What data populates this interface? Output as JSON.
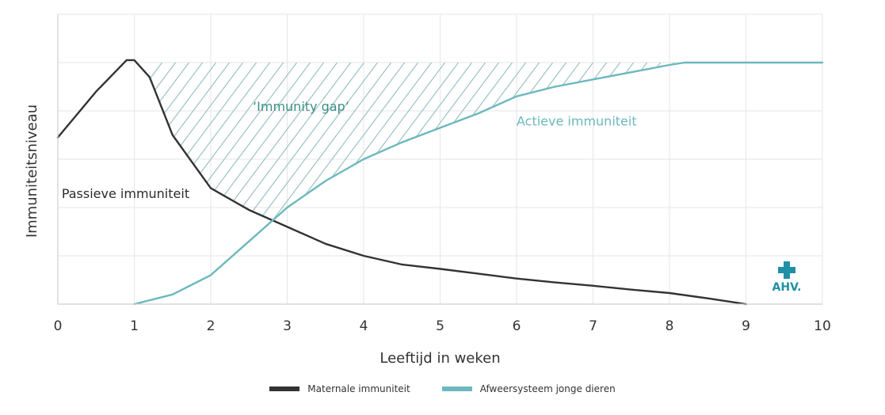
{
  "chart_data": {
    "type": "line",
    "xlabel": "Leeftijd in weken",
    "ylabel": "Immuniteitsniveau",
    "xlim": [
      0,
      10
    ],
    "ylim": [
      0,
      6
    ],
    "x_ticks": [
      "0",
      "1",
      "2",
      "3",
      "4",
      "5",
      "6",
      "7",
      "8",
      "9",
      "10"
    ],
    "grid": true,
    "legend_position": "bottom-center",
    "series": [
      {
        "name": "Maternale immuniteit",
        "color": "#333333",
        "x": [
          0,
          0.5,
          0.9,
          1.0,
          1.2,
          1.5,
          2.0,
          2.5,
          3.0,
          3.5,
          4.0,
          4.5,
          5.0,
          5.5,
          6.0,
          6.5,
          7.0,
          7.5,
          8.0,
          8.5,
          9.0
        ],
        "y": [
          3.45,
          4.4,
          5.05,
          5.05,
          4.7,
          3.5,
          2.4,
          1.95,
          1.6,
          1.25,
          1.0,
          0.82,
          0.73,
          0.63,
          0.53,
          0.45,
          0.38,
          0.3,
          0.23,
          0.12,
          0.0
        ]
      },
      {
        "name": "Afweersysteem jonge dieren",
        "color": "#6cb8bd",
        "x": [
          1.0,
          1.5,
          2.0,
          2.5,
          3.0,
          3.5,
          4.0,
          4.5,
          5.0,
          5.5,
          6.0,
          6.5,
          7.0,
          7.5,
          8.0,
          8.2,
          8.5,
          9.0,
          9.5,
          10.0
        ],
        "y": [
          0.0,
          0.2,
          0.6,
          1.3,
          2.0,
          2.55,
          3.0,
          3.35,
          3.65,
          3.95,
          4.3,
          4.5,
          4.65,
          4.8,
          4.95,
          5.0,
          5.0,
          5.0,
          5.0,
          5.0
        ]
      }
    ],
    "gap_region": {
      "x_start": 1.2,
      "x_end": 8.2,
      "y_top": 5.0
    },
    "annotations": [
      {
        "text": "‘Immunity gap’",
        "x": 2.55,
        "y": 4.0,
        "color": "#3d8f88"
      },
      {
        "text": "Actieve immuniteit",
        "x": 6.0,
        "y": 3.7,
        "color": "#6cb8bd"
      },
      {
        "text": "Passieve immuniteit",
        "x": 0.05,
        "y": 2.2,
        "color": "#2b2b2b"
      }
    ],
    "logo_text": "AHV."
  }
}
